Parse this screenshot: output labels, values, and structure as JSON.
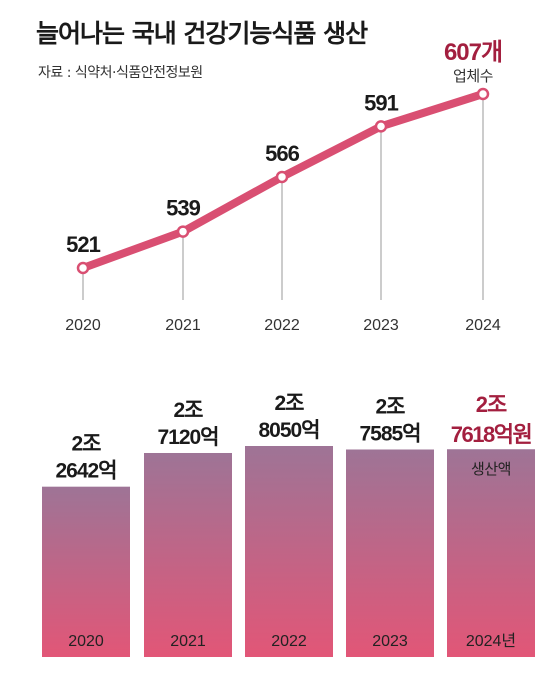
{
  "header": {
    "title": "늘어나는 국내 건강기능식품 생산",
    "source": "자료 : 식약처·식품안전정보원"
  },
  "colors": {
    "line": "#d94f72",
    "bar_top": "#9e7496",
    "bar_bottom": "#e25677",
    "highlight": "#a31f3f"
  },
  "chart_data": [
    {
      "type": "line",
      "categories": [
        "2020",
        "2021",
        "2022",
        "2023",
        "2024"
      ],
      "values": [
        521,
        539,
        566,
        591,
        607
      ],
      "value_labels": [
        "521",
        "539",
        "566",
        "591",
        "607개"
      ],
      "annotation": "업체수",
      "ylim": [
        500,
        620
      ],
      "grid": false
    },
    {
      "type": "bar",
      "categories": [
        "2020",
        "2021",
        "2022",
        "2023",
        "2024년"
      ],
      "values": [
        22642,
        27120,
        28050,
        27585,
        27618
      ],
      "value_labels": [
        [
          "2조",
          "2642억"
        ],
        [
          "2조",
          "7120억"
        ],
        [
          "2조",
          "8050억"
        ],
        [
          "2조",
          "7585억"
        ],
        [
          "2조",
          "7618억원"
        ]
      ],
      "annotation": "생산액",
      "ylim": [
        0,
        31000
      ],
      "grid": false
    }
  ]
}
